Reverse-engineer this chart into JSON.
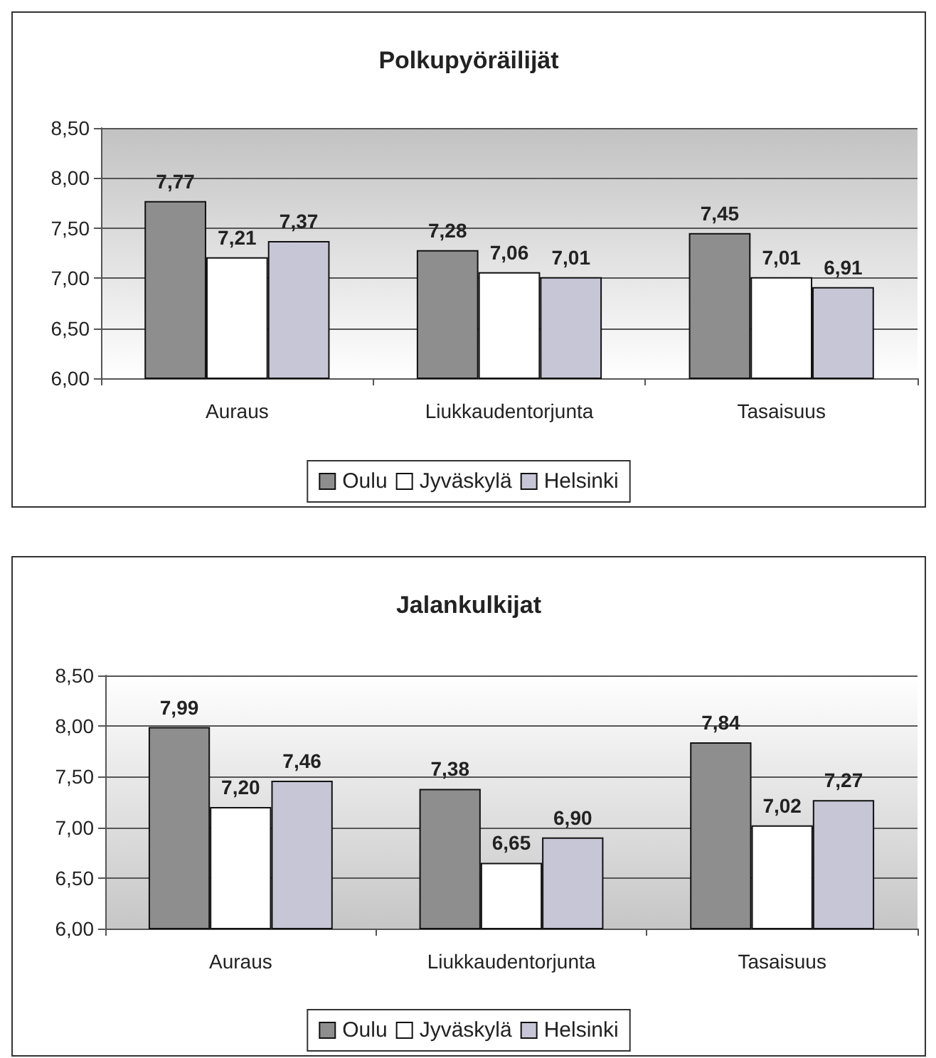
{
  "chart_data": [
    {
      "type": "bar",
      "title": "Polkupyöräilijät",
      "categories": [
        "Auraus",
        "Liukkaudentorjunta",
        "Tasaisuus"
      ],
      "series": [
        {
          "name": "Oulu",
          "color": "#8e8e8e",
          "values": [
            7.77,
            7.28,
            7.45
          ],
          "value_labels": [
            "7,77",
            "7,28",
            "7,45"
          ]
        },
        {
          "name": "Jyväskylä",
          "color": "#ffffff",
          "values": [
            7.21,
            7.06,
            7.01
          ],
          "value_labels": [
            "7,21",
            "7,06",
            "7,01"
          ]
        },
        {
          "name": "Helsinki",
          "color": "#c6c6d6",
          "values": [
            7.37,
            7.01,
            6.91
          ],
          "value_labels": [
            "7,37",
            "7,01",
            "6,91"
          ]
        }
      ],
      "ylim": [
        6,
        8.5
      ],
      "yticks": [
        {
          "value": 6,
          "label": "6,00"
        },
        {
          "value": 6.5,
          "label": "6,50"
        },
        {
          "value": 7,
          "label": "7,00"
        },
        {
          "value": 7.5,
          "label": "7,50"
        },
        {
          "value": 8,
          "label": "8,00"
        },
        {
          "value": 8.5,
          "label": "8,50"
        }
      ],
      "grid": "y",
      "legend": "bottom"
    },
    {
      "type": "bar",
      "title": "Jalankulkijat",
      "categories": [
        "Auraus",
        "Liukkaudentorjunta",
        "Tasaisuus"
      ],
      "series": [
        {
          "name": "Oulu",
          "color": "#8e8e8e",
          "values": [
            7.99,
            7.38,
            7.84
          ],
          "value_labels": [
            "7,99",
            "7,38",
            "7,84"
          ]
        },
        {
          "name": "Jyväskylä",
          "color": "#ffffff",
          "values": [
            7.2,
            6.65,
            7.02
          ],
          "value_labels": [
            "7,20",
            "6,65",
            "7,02"
          ]
        },
        {
          "name": "Helsinki",
          "color": "#c6c6d6",
          "values": [
            7.46,
            6.9,
            7.27
          ],
          "value_labels": [
            "7,46",
            "6,90",
            "7,27"
          ]
        }
      ],
      "ylim": [
        6,
        8.5
      ],
      "yticks": [
        {
          "value": 6,
          "label": "6,00"
        },
        {
          "value": 6.5,
          "label": "6,50"
        },
        {
          "value": 7,
          "label": "7,00"
        },
        {
          "value": 7.5,
          "label": "7,50"
        },
        {
          "value": 8,
          "label": "8,00"
        },
        {
          "value": 8.5,
          "label": "8,50"
        }
      ],
      "grid": "y",
      "legend": "bottom"
    }
  ]
}
